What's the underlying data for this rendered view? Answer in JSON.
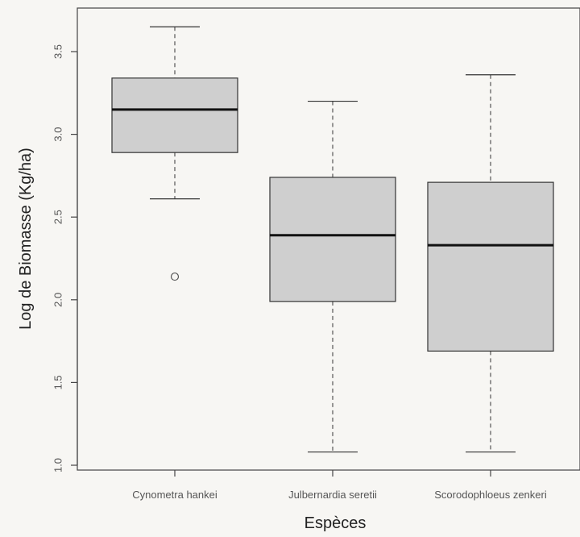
{
  "chart_data": {
    "type": "boxplot",
    "title": "",
    "xlabel": "Espèces",
    "ylabel": "Log de Biomasse (Kg/ha)",
    "ylim": [
      0.97,
      3.72
    ],
    "yticks": [
      1.0,
      1.5,
      2.0,
      2.5,
      3.0,
      3.5
    ],
    "ytick_labels": [
      "1.0",
      "1.5",
      "2.0",
      "2.5",
      "3.0",
      "3.5"
    ],
    "grid": false,
    "categories": [
      "Cynometra hankei",
      "Julbernardia seretii",
      "Scorodophloeus zenkeri"
    ],
    "boxes": [
      {
        "category": "Cynometra hankei",
        "min": 2.61,
        "q1": 2.89,
        "median": 3.15,
        "q3": 3.34,
        "max": 3.65,
        "outliers": [
          2.14
        ]
      },
      {
        "category": "Julbernardia seretii",
        "min": 1.08,
        "q1": 1.99,
        "median": 2.39,
        "q3": 2.74,
        "max": 3.2,
        "outliers": []
      },
      {
        "category": "Scorodophloeus zenkeri",
        "min": 1.08,
        "q1": 1.69,
        "median": 2.33,
        "q3": 2.71,
        "max": 3.36,
        "outliers": []
      }
    ],
    "colors": {
      "box_fill": "#cfcfcf",
      "box_stroke": "#333333",
      "median": "#111111",
      "frame": "#444444"
    }
  }
}
